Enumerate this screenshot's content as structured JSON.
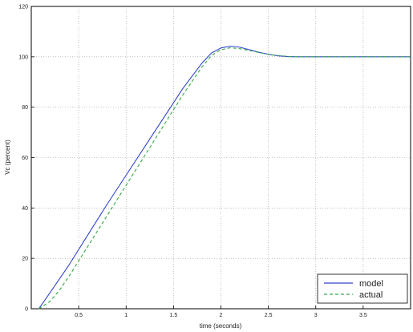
{
  "chart_data": {
    "type": "line",
    "title": "",
    "xlabel": "time (seconds)",
    "ylabel": "Vc (percent)",
    "xlim": [
      0,
      4
    ],
    "ylim": [
      0,
      120
    ],
    "xticks": [
      0.5,
      1,
      1.5,
      2,
      2.5,
      3,
      3.5
    ],
    "xtick_labels": [
      "0.5",
      "1",
      "1.5",
      "2",
      "2.5",
      "3",
      "3.5"
    ],
    "yticks": [
      0,
      20,
      40,
      60,
      80,
      100,
      120
    ],
    "ytick_labels": [
      "0",
      "20",
      "40",
      "60",
      "80",
      "100",
      "120"
    ],
    "grid": true,
    "legend": {
      "placement": "bottom-right"
    },
    "series": [
      {
        "name": "model",
        "color": "#3344cc",
        "dash": "solid",
        "x": [
          0.08,
          0.2,
          0.4,
          0.6,
          0.8,
          1.0,
          1.2,
          1.4,
          1.6,
          1.8,
          1.9,
          2.0,
          2.1,
          2.2,
          2.3,
          2.4,
          2.5,
          2.6,
          2.7,
          2.8,
          3.0,
          3.2,
          3.5,
          4.0
        ],
        "y": [
          0,
          6.5,
          17.5,
          29.5,
          41.5,
          53.0,
          64.5,
          76.0,
          87.5,
          97.5,
          101.5,
          103.5,
          104.2,
          103.8,
          102.8,
          101.8,
          101.0,
          100.4,
          100.1,
          100.0,
          100.0,
          100.0,
          100.0,
          100.0
        ]
      },
      {
        "name": "actual",
        "color": "#33aa44",
        "dash": "dashed",
        "x": [
          0.08,
          0.2,
          0.3,
          0.4,
          0.6,
          0.8,
          1.0,
          1.2,
          1.4,
          1.6,
          1.8,
          1.9,
          2.0,
          2.1,
          2.2,
          2.3,
          2.4,
          2.5,
          2.6,
          2.7,
          2.8,
          3.0,
          3.2,
          3.5,
          4.0
        ],
        "y": [
          0,
          3.0,
          7.5,
          13.0,
          25.0,
          37.0,
          49.0,
          61.0,
          73.0,
          85.0,
          96.0,
          100.5,
          102.8,
          103.6,
          103.2,
          102.5,
          101.7,
          101.0,
          100.5,
          100.2,
          100.0,
          100.0,
          100.0,
          100.0,
          100.0
        ]
      }
    ]
  }
}
